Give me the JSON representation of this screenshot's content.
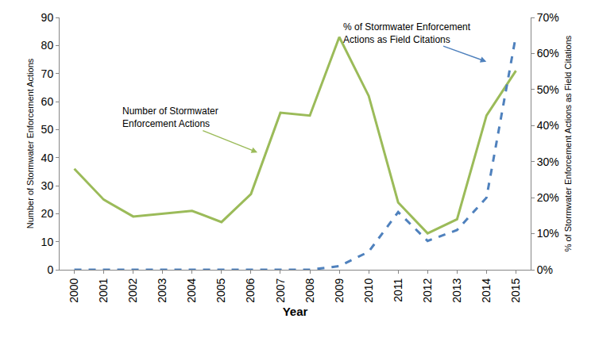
{
  "chart_data": {
    "type": "line",
    "categories": [
      "2000",
      "2001",
      "2002",
      "2003",
      "2004",
      "2005",
      "2006",
      "2007",
      "2008",
      "2009",
      "2010",
      "2011",
      "2012",
      "2013",
      "2014",
      "2015"
    ],
    "series": [
      {
        "name": "Number of Stormwater\nEnforcement Actions",
        "color": "#9bbb59",
        "line_style": "solid",
        "values": [
          36,
          25,
          19,
          20,
          21,
          17,
          27,
          56,
          55,
          83,
          62,
          24,
          13,
          18,
          55,
          71
        ]
      },
      {
        "name": "% of Stormwater Enforcement\nActions as Field Citations",
        "color": "#4f81bd",
        "line_style": "dash",
        "axis": "y2",
        "values": [
          0,
          0,
          0,
          0,
          0,
          0,
          0,
          0,
          0,
          1,
          5,
          16,
          8,
          11,
          20,
          65
        ]
      }
    ],
    "x_label": "Year",
    "y_label": "Number of Stormwater Enforcement Actions",
    "y2_label": "% of Stormwater Enforcement Actions as Field Citations",
    "ylim": [
      0,
      90
    ],
    "yticks": [
      0,
      10,
      20,
      30,
      40,
      50,
      60,
      70,
      80,
      90
    ],
    "y2lim": [
      0,
      70
    ],
    "y2ticks": [
      {
        "value": 0,
        "label": "0%"
      },
      {
        "value": 10,
        "label": "10%"
      },
      {
        "value": 20,
        "label": "20%"
      },
      {
        "value": 30,
        "label": "30%"
      },
      {
        "value": 40,
        "label": "40%"
      },
      {
        "value": 50,
        "label": "50%"
      },
      {
        "value": 60,
        "label": "60%"
      },
      {
        "value": 70,
        "label": "70%"
      }
    ],
    "grid": false
  }
}
